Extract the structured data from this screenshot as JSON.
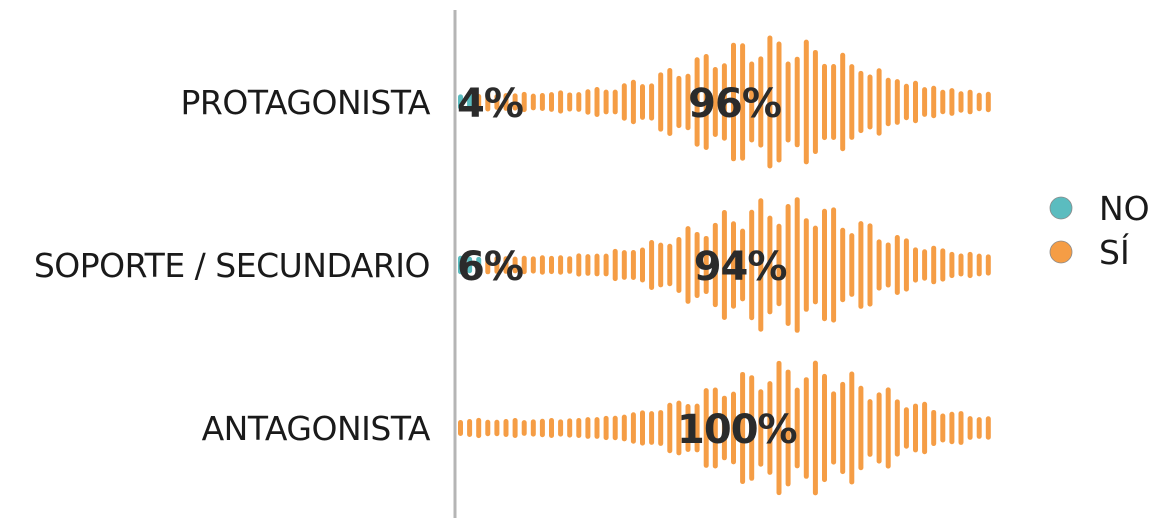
{
  "chart_data": {
    "type": "bar",
    "stacked": true,
    "orientation": "horizontal",
    "style": "sound-wave",
    "categories": [
      "PROTAGONISTA",
      "SOPORTE / SECUNDARIO",
      "ANTAGONISTA"
    ],
    "series": [
      {
        "name": "NO",
        "color": "#5bbcbf",
        "values": [
          4,
          6,
          0
        ]
      },
      {
        "name": "SÍ",
        "color": "#f59d45",
        "values": [
          96,
          94,
          100
        ]
      }
    ],
    "data_labels": [
      [
        "4%",
        "96%"
      ],
      [
        "6%",
        "94%"
      ],
      [
        "",
        "100%"
      ]
    ],
    "xlim": [
      0,
      100
    ],
    "grid": false,
    "legend": {
      "position": "right",
      "entries": [
        "NO",
        "SÍ"
      ]
    }
  }
}
